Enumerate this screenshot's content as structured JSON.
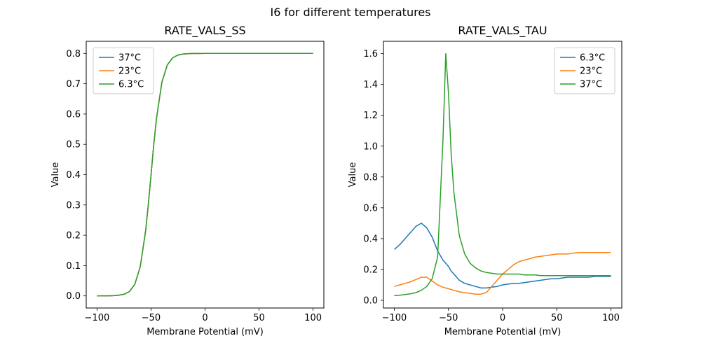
{
  "figure": {
    "suptitle": "I6 for different temperatures",
    "background": "#ffffff"
  },
  "chart_data": [
    {
      "type": "line",
      "title": "RATE_VALS_SS",
      "xlabel": "Membrane Potential (mV)",
      "ylabel": "Value",
      "xlim": [
        -110,
        110
      ],
      "ylim": [
        -0.04,
        0.84
      ],
      "xticks": [
        -100,
        -50,
        0,
        50,
        100
      ],
      "xtick_labels": [
        "−100",
        "−50",
        "0",
        "50",
        "100"
      ],
      "yticks": [
        0.0,
        0.1,
        0.2,
        0.3,
        0.4,
        0.5,
        0.6,
        0.7,
        0.8
      ],
      "ytick_labels": [
        "0.0",
        "0.1",
        "0.2",
        "0.3",
        "0.4",
        "0.5",
        "0.6",
        "0.7",
        "0.8"
      ],
      "grid": false,
      "legend": {
        "position": "upper-left"
      },
      "x": [
        -100,
        -95,
        -90,
        -85,
        -80,
        -75,
        -70,
        -65,
        -60,
        -55,
        -52.5,
        -50,
        -47.5,
        -45,
        -40,
        -35,
        -30,
        -25,
        -20,
        -15,
        -10,
        -5,
        0,
        5,
        10,
        15,
        20,
        25,
        30,
        35,
        40,
        45,
        50,
        55,
        60,
        65,
        70,
        75,
        80,
        85,
        90,
        95,
        100
      ],
      "series": [
        {
          "name": "37°C",
          "color": "#1f77b4",
          "values": [
            0.0,
            0.0001,
            0.0002,
            0.0007,
            0.002,
            0.0053,
            0.0143,
            0.038,
            0.0953,
            0.2152,
            0.3021,
            0.4,
            0.4979,
            0.5848,
            0.7047,
            0.7617,
            0.7857,
            0.7947,
            0.7981,
            0.7993,
            0.7997,
            0.7999,
            0.8,
            0.8,
            0.8,
            0.8,
            0.8,
            0.8,
            0.8,
            0.8,
            0.8,
            0.8,
            0.8,
            0.8,
            0.8,
            0.8,
            0.8,
            0.8,
            0.8,
            0.8,
            0.8,
            0.8,
            0.8
          ]
        },
        {
          "name": "23°C",
          "color": "#ff7f0e",
          "values": [
            0.0,
            0.0001,
            0.0002,
            0.0007,
            0.002,
            0.0053,
            0.0143,
            0.038,
            0.0953,
            0.2152,
            0.3021,
            0.4,
            0.4979,
            0.5848,
            0.7047,
            0.7617,
            0.7857,
            0.7947,
            0.7981,
            0.7993,
            0.7997,
            0.7999,
            0.8,
            0.8,
            0.8,
            0.8,
            0.8,
            0.8,
            0.8,
            0.8,
            0.8,
            0.8,
            0.8,
            0.8,
            0.8,
            0.8,
            0.8,
            0.8,
            0.8,
            0.8,
            0.8,
            0.8,
            0.8
          ]
        },
        {
          "name": "6.3°C",
          "color": "#2ca02c",
          "values": [
            0.0,
            0.0001,
            0.0002,
            0.0007,
            0.002,
            0.0053,
            0.0143,
            0.038,
            0.0953,
            0.2152,
            0.3021,
            0.4,
            0.4979,
            0.5848,
            0.7047,
            0.7617,
            0.7857,
            0.7947,
            0.7981,
            0.7993,
            0.7997,
            0.7999,
            0.8,
            0.8,
            0.8,
            0.8,
            0.8,
            0.8,
            0.8,
            0.8,
            0.8,
            0.8,
            0.8,
            0.8,
            0.8,
            0.8,
            0.8,
            0.8,
            0.8,
            0.8,
            0.8,
            0.8,
            0.8
          ]
        }
      ]
    },
    {
      "type": "line",
      "title": "RATE_VALS_TAU",
      "xlabel": "Membrane Potential (mV)",
      "ylabel": "Value",
      "xlim": [
        -110,
        110
      ],
      "ylim": [
        -0.05,
        1.68
      ],
      "xticks": [
        -100,
        -50,
        0,
        50,
        100
      ],
      "xtick_labels": [
        "−100",
        "−50",
        "0",
        "50",
        "100"
      ],
      "yticks": [
        0.0,
        0.2,
        0.4,
        0.6,
        0.8,
        1.0,
        1.2,
        1.4,
        1.6
      ],
      "ytick_labels": [
        "0.0",
        "0.2",
        "0.4",
        "0.6",
        "0.8",
        "1.0",
        "1.2",
        "1.4",
        "1.6"
      ],
      "grid": false,
      "legend": {
        "position": "upper-right"
      },
      "x": [
        -100,
        -95,
        -90,
        -85,
        -80,
        -75,
        -70,
        -65,
        -60,
        -55,
        -52.5,
        -50,
        -47.5,
        -45,
        -40,
        -35,
        -30,
        -25,
        -20,
        -15,
        -10,
        -5,
        0,
        5,
        10,
        15,
        20,
        25,
        30,
        35,
        40,
        45,
        50,
        55,
        60,
        65,
        70,
        75,
        80,
        85,
        90,
        95,
        100
      ],
      "series": [
        {
          "name": "6.3°C",
          "color": "#1f77b4",
          "values": [
            0.33,
            0.36,
            0.4,
            0.44,
            0.48,
            0.5,
            0.47,
            0.41,
            0.32,
            0.26,
            0.24,
            0.22,
            0.19,
            0.17,
            0.13,
            0.11,
            0.1,
            0.09,
            0.08,
            0.08,
            0.085,
            0.09,
            0.1,
            0.105,
            0.11,
            0.11,
            0.115,
            0.12,
            0.125,
            0.13,
            0.135,
            0.14,
            0.14,
            0.145,
            0.15,
            0.15,
            0.15,
            0.15,
            0.15,
            0.155,
            0.155,
            0.155,
            0.155
          ]
        },
        {
          "name": "23°C",
          "color": "#ff7f0e",
          "values": [
            0.09,
            0.1,
            0.11,
            0.12,
            0.135,
            0.15,
            0.15,
            0.125,
            0.1,
            0.085,
            0.08,
            0.075,
            0.07,
            0.065,
            0.055,
            0.05,
            0.045,
            0.04,
            0.04,
            0.05,
            0.09,
            0.13,
            0.17,
            0.2,
            0.23,
            0.25,
            0.26,
            0.27,
            0.28,
            0.285,
            0.29,
            0.295,
            0.3,
            0.3,
            0.3,
            0.305,
            0.31,
            0.31,
            0.31,
            0.31,
            0.31,
            0.31,
            0.31
          ]
        },
        {
          "name": "37°C",
          "color": "#2ca02c",
          "values": [
            0.03,
            0.033,
            0.037,
            0.042,
            0.05,
            0.065,
            0.09,
            0.14,
            0.28,
            1.05,
            1.6,
            1.35,
            0.95,
            0.7,
            0.42,
            0.3,
            0.24,
            0.21,
            0.19,
            0.18,
            0.175,
            0.17,
            0.17,
            0.17,
            0.17,
            0.17,
            0.165,
            0.165,
            0.165,
            0.16,
            0.16,
            0.16,
            0.16,
            0.16,
            0.16,
            0.16,
            0.16,
            0.16,
            0.16,
            0.16,
            0.16,
            0.16,
            0.16
          ]
        }
      ]
    }
  ]
}
